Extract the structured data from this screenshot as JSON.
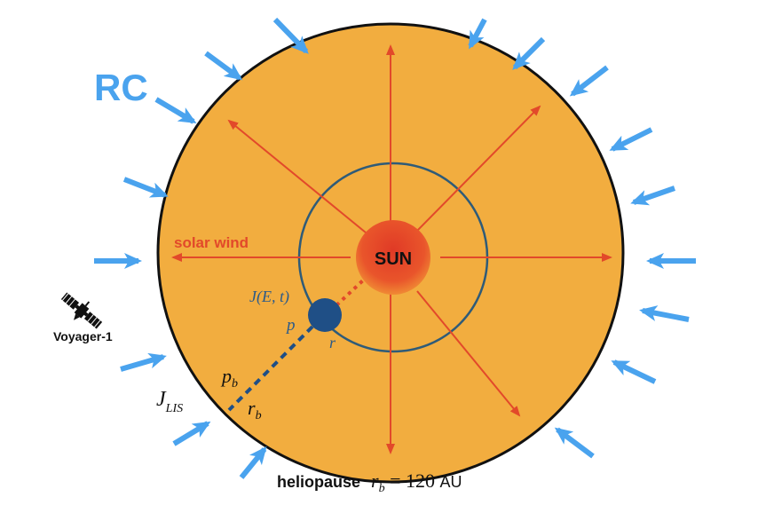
{
  "labels": {
    "rc": "RC",
    "solar_wind": "solar wind",
    "sun": "SUN",
    "j_et": "J(E, t)",
    "p": "p",
    "r": "r",
    "p_b": "p",
    "p_b_sub": "b",
    "r_b": "r",
    "r_b_sub": "b",
    "j_lis": "J",
    "j_lis_sub": "LIS",
    "voyager": "Voyager-1",
    "heliopause": "heliopause",
    "hp_rb": "r",
    "hp_rb_sub": "b",
    "hp_eq": " = 120 ",
    "hp_unit": "AU"
  },
  "colors": {
    "heliosphere_fill": "#f2ad3f",
    "boundary": "#111111",
    "wind_arrow": "#e2492a",
    "rc_arrow": "#4aa3ee",
    "rc_text": "#4aa3ee",
    "inner_orbit": "#2f5b78",
    "sun_center": "#e8402a",
    "sun_edge": "#f07a30",
    "particle": "#1f4f86",
    "math_text": "#2a5a8a"
  },
  "icons": {
    "satellite": "satellite-icon"
  }
}
